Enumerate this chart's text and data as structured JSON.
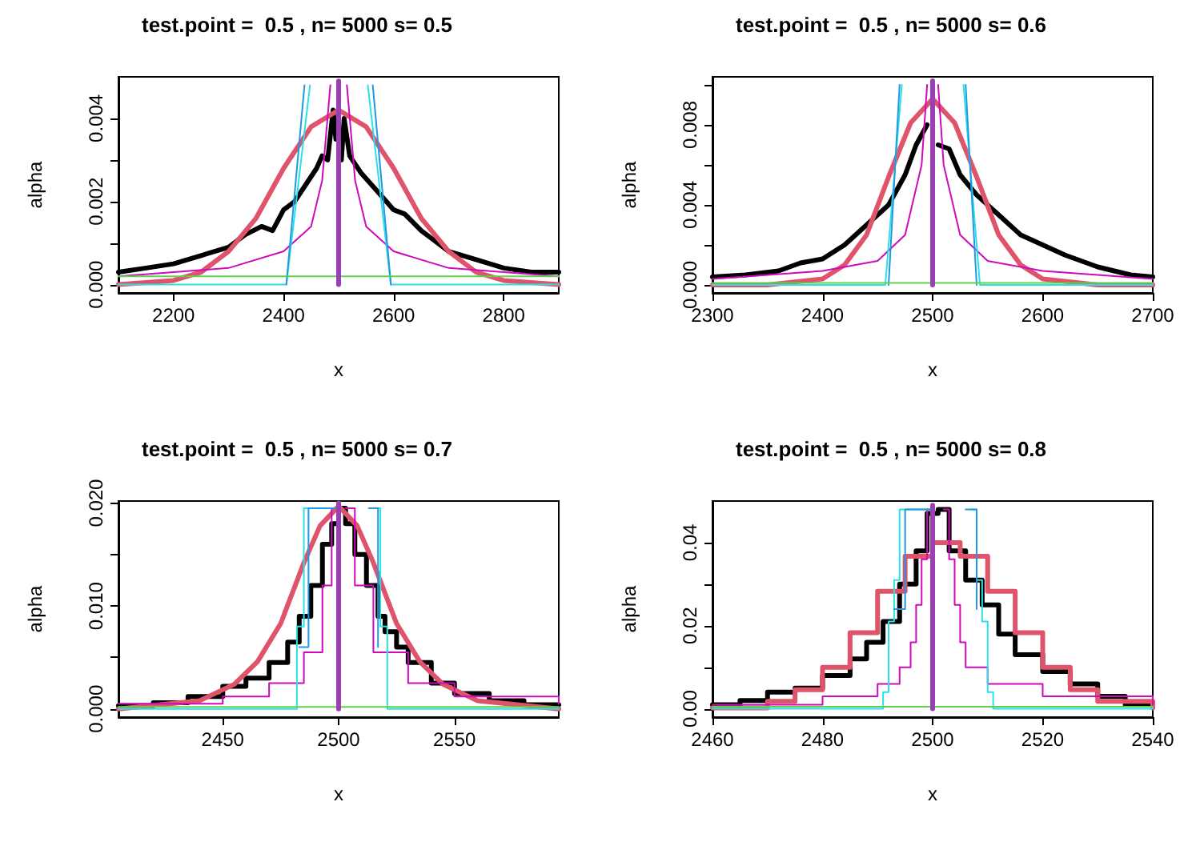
{
  "chart_data": [
    {
      "type": "line",
      "title": "test.point =  0.5 , n= 5000 s= 0.5",
      "xlabel": "x",
      "ylabel": "alpha",
      "xlim": [
        2100,
        2900
      ],
      "ylim": [
        -0.0002,
        0.005
      ],
      "xticks": [
        2200,
        2400,
        2600,
        2800
      ],
      "yticks": [
        {
          "value": 0,
          "label": "0.000"
        },
        {
          "value": 0.001,
          "label": null
        },
        {
          "value": 0.002,
          "label": "0.002"
        },
        {
          "value": 0.003,
          "label": null
        },
        {
          "value": 0.004,
          "label": "0.004"
        }
      ],
      "marker": "none",
      "series": [
        {
          "color": "#000000",
          "x": [
            2100,
            2150,
            2200,
            2250,
            2300,
            2330,
            2360,
            2380,
            2400,
            2420,
            2440,
            2460,
            2470,
            2480,
            2490,
            2495,
            2500,
            2505,
            2510,
            2520,
            2540,
            2560,
            2580,
            2600,
            2620,
            2650,
            2680,
            2700,
            2750,
            2800,
            2850,
            2900
          ],
          "values": [
            0.0003,
            0.0004,
            0.0005,
            0.0007,
            0.0009,
            0.0012,
            0.0014,
            0.0013,
            0.0018,
            0.002,
            0.0024,
            0.0028,
            0.0031,
            0.003,
            0.0042,
            0.0035,
            null,
            0.003,
            0.004,
            0.0031,
            0.0027,
            0.0024,
            0.0021,
            0.0018,
            0.0017,
            0.0013,
            0.001,
            0.0008,
            0.0006,
            0.0004,
            0.0003,
            0.0003
          ]
        },
        {
          "color": "#df536b",
          "x": [
            2100,
            2200,
            2250,
            2300,
            2350,
            2400,
            2450,
            2500,
            2550,
            2600,
            2650,
            2700,
            2750,
            2800,
            2900
          ],
          "values": [
            0,
            0.0001,
            0.0003,
            0.0008,
            0.0016,
            0.0028,
            0.0038,
            0.0042,
            0.0038,
            0.0028,
            0.0016,
            0.0008,
            0.0003,
            0.0001,
            0
          ]
        },
        {
          "color": "#cd0bbc",
          "x": [
            2100,
            2200,
            2300,
            2400,
            2450,
            2470,
            2485,
            2500,
            2515,
            2530,
            2550,
            2600,
            2700,
            2800,
            2900
          ],
          "values": [
            0.0002,
            0.0003,
            0.0004,
            0.0008,
            0.0014,
            0.0025,
            0.0048,
            null,
            0.0048,
            0.0025,
            0.0014,
            0.0008,
            0.0004,
            0.0003,
            0.0002
          ]
        },
        {
          "color": "#28e2e5",
          "x": [
            2100,
            2405,
            2448,
            2500,
            2553,
            2595,
            2900
          ],
          "values": [
            0,
            0,
            0.0048,
            null,
            0.0048,
            0,
            0
          ]
        },
        {
          "color": "#2297e6",
          "x": [
            2405,
            2438,
            2500,
            2562,
            2595
          ],
          "values": [
            0,
            0.0048,
            null,
            0.0048,
            0
          ]
        },
        {
          "color": "#61d04f",
          "x": [
            2100,
            2900
          ],
          "values": [
            0.0002,
            0.0002
          ]
        },
        {
          "color": "#9b3fb5",
          "x": [
            2500,
            2500
          ],
          "values": [
            0,
            0.0049
          ]
        }
      ]
    },
    {
      "type": "line",
      "title": "test.point =  0.5 , n= 5000 s= 0.6",
      "xlabel": "x",
      "ylabel": "alpha",
      "xlim": [
        2300,
        2700
      ],
      "ylim": [
        -0.0004,
        0.0104
      ],
      "xticks": [
        2300,
        2400,
        2500,
        2600,
        2700
      ],
      "yticks": [
        {
          "value": 0,
          "label": "0.000"
        },
        {
          "value": 0.002,
          "label": null
        },
        {
          "value": 0.004,
          "label": "0.004"
        },
        {
          "value": 0.006,
          "label": null
        },
        {
          "value": 0.008,
          "label": "0.008"
        },
        {
          "value": 0.01,
          "label": null
        }
      ],
      "marker": "none",
      "series": [
        {
          "color": "#000000",
          "x": [
            2300,
            2330,
            2360,
            2380,
            2400,
            2420,
            2440,
            2460,
            2475,
            2485,
            2495,
            2500,
            2505,
            2515,
            2525,
            2540,
            2560,
            2580,
            2600,
            2620,
            2650,
            2680,
            2700
          ],
          "values": [
            0.0004,
            0.0005,
            0.0007,
            0.0011,
            0.0013,
            0.002,
            0.003,
            0.004,
            0.0055,
            0.007,
            0.008,
            null,
            0.007,
            0.0068,
            0.0055,
            0.0045,
            0.0035,
            0.0025,
            0.002,
            0.0015,
            0.0009,
            0.0005,
            0.0004
          ]
        },
        {
          "color": "#df536b",
          "x": [
            2300,
            2350,
            2400,
            2420,
            2440,
            2460,
            2480,
            2500,
            2520,
            2540,
            2560,
            2580,
            2600,
            2650,
            2700
          ],
          "values": [
            0,
            0,
            0.0003,
            0.001,
            0.0025,
            0.0054,
            0.0081,
            0.0093,
            0.0081,
            0.0054,
            0.0025,
            0.001,
            0.0003,
            0,
            0
          ]
        },
        {
          "color": "#cd0bbc",
          "x": [
            2300,
            2400,
            2450,
            2475,
            2490,
            2495,
            2500,
            2505,
            2510,
            2525,
            2550,
            2600,
            2700
          ],
          "values": [
            0.0003,
            0.0007,
            0.0012,
            0.0025,
            0.006,
            0.01,
            null,
            0.01,
            0.006,
            0.0025,
            0.0012,
            0.0007,
            0.0003
          ]
        },
        {
          "color": "#28e2e5",
          "x": [
            2300,
            2457,
            2472,
            2500,
            2528,
            2543,
            2700
          ],
          "values": [
            0,
            0,
            0.01,
            null,
            0.01,
            0,
            0
          ]
        },
        {
          "color": "#2297e6",
          "x": [
            2460,
            2470,
            2500,
            2530,
            2540
          ],
          "values": [
            0,
            0.01,
            null,
            0.01,
            0
          ]
        },
        {
          "color": "#61d04f",
          "x": [
            2300,
            2700
          ],
          "values": [
            0.0001,
            0.0001
          ]
        },
        {
          "color": "#9b3fb5",
          "x": [
            2500,
            2500
          ],
          "values": [
            0,
            0.0102
          ]
        }
      ]
    },
    {
      "type": "line",
      "title": "test.point =  0.5 , n= 5000 s= 0.7",
      "xlabel": "x",
      "ylabel": "alpha",
      "xlim": [
        2405,
        2595
      ],
      "ylim": [
        -0.0008,
        0.0202
      ],
      "xticks": [
        2450,
        2500,
        2550
      ],
      "yticks": [
        {
          "value": 0,
          "label": "0.000"
        },
        {
          "value": 0.005,
          "label": null
        },
        {
          "value": 0.01,
          "label": "0.010"
        },
        {
          "value": 0.015,
          "label": null
        },
        {
          "value": 0.02,
          "label": "0.020"
        }
      ],
      "marker": "none",
      "series": [
        {
          "type": "step",
          "color": "#000000",
          "x": [
            2405,
            2420,
            2435,
            2450,
            2460,
            2470,
            2478,
            2483,
            2488,
            2493,
            2497,
            2500,
            2503,
            2507,
            2512,
            2517,
            2520,
            2525,
            2530,
            2540,
            2550,
            2565,
            2580,
            2595
          ],
          "values": [
            0.0003,
            0.0006,
            0.0012,
            0.0022,
            0.003,
            0.0045,
            0.0065,
            0.009,
            0.012,
            0.016,
            0.018,
            0.0195,
            0.018,
            0.015,
            0.012,
            0.009,
            0.0075,
            0.006,
            0.0045,
            0.0025,
            0.0015,
            0.0008,
            0.0004,
            0.0003
          ]
        },
        {
          "color": "#df536b",
          "x": [
            2405,
            2440,
            2455,
            2465,
            2475,
            2485,
            2492,
            2500,
            2508,
            2515,
            2525,
            2535,
            2545,
            2560,
            2595
          ],
          "values": [
            0,
            0.0008,
            0.0024,
            0.0046,
            0.0083,
            0.0142,
            0.0178,
            0.0197,
            0.0178,
            0.0142,
            0.0083,
            0.0046,
            0.0024,
            0.0008,
            0
          ]
        },
        {
          "type": "step",
          "color": "#cd0bbc",
          "x": [
            2405,
            2450,
            2470,
            2485,
            2493,
            2497,
            2500,
            2503,
            2507,
            2515,
            2530,
            2550,
            2595
          ],
          "values": [
            0.0005,
            0.0012,
            0.0025,
            0.0055,
            0.012,
            0.0195,
            null,
            0.0195,
            0.012,
            0.0055,
            0.0025,
            0.0012,
            0.0005
          ]
        },
        {
          "type": "step",
          "color": "#28e2e5",
          "x": [
            2405,
            2480,
            2482,
            2485,
            2500,
            2515,
            2518,
            2521,
            2595
          ],
          "values": [
            0,
            0,
            0.008,
            0.0195,
            null,
            0.0195,
            0.008,
            0,
            0
          ]
        },
        {
          "type": "step",
          "color": "#2297e6",
          "x": [
            2483,
            2487,
            2500,
            2513,
            2517
          ],
          "values": [
            0.006,
            0.0195,
            null,
            0.0195,
            0.006
          ]
        },
        {
          "color": "#61d04f",
          "x": [
            2405,
            2595
          ],
          "values": [
            0.0002,
            0.0002
          ]
        },
        {
          "color": "#9b3fb5",
          "x": [
            2500,
            2500
          ],
          "values": [
            0,
            0.02
          ]
        }
      ]
    },
    {
      "type": "line",
      "title": "test.point =  0.5 , n= 5000 s= 0.8",
      "xlabel": "x",
      "ylabel": "alpha",
      "xlim": [
        2460,
        2540
      ],
      "ylim": [
        -0.002,
        0.05
      ],
      "xticks": [
        2460,
        2480,
        2500,
        2520,
        2540
      ],
      "yticks": [
        {
          "value": 0,
          "label": "0.00"
        },
        {
          "value": 0.01,
          "label": null
        },
        {
          "value": 0.02,
          "label": "0.02"
        },
        {
          "value": 0.03,
          "label": null
        },
        {
          "value": 0.04,
          "label": "0.04"
        }
      ],
      "marker": "none",
      "series": [
        {
          "type": "step",
          "color": "#000000",
          "x": [
            2460,
            2465,
            2470,
            2475,
            2480,
            2485,
            2488,
            2491,
            2494,
            2497,
            2499,
            2501,
            2503,
            2506,
            2509,
            2512,
            2515,
            2520,
            2525,
            2530,
            2535,
            2540
          ],
          "values": [
            0.001,
            0.002,
            0.004,
            0.005,
            0.008,
            0.012,
            0.016,
            0.021,
            0.03,
            0.038,
            0.047,
            0.048,
            0.038,
            0.031,
            0.025,
            0.018,
            0.013,
            0.009,
            0.006,
            0.003,
            0.001,
            0.001
          ]
        },
        {
          "type": "step",
          "color": "#df536b",
          "x": [
            2460,
            2470,
            2475,
            2480,
            2485,
            2490,
            2495,
            2500,
            2505,
            2510,
            2515,
            2520,
            2525,
            2530,
            2540
          ],
          "values": [
            0.0002,
            0.0018,
            0.0046,
            0.01,
            0.0183,
            0.0283,
            0.0367,
            0.04,
            0.0367,
            0.0283,
            0.0183,
            0.01,
            0.0046,
            0.0018,
            0.0002
          ]
        },
        {
          "type": "step",
          "color": "#cd0bbc",
          "x": [
            2460,
            2480,
            2490,
            2494,
            2496,
            2497,
            2498,
            2499,
            2500,
            2502,
            2503,
            2504,
            2505,
            2506,
            2510,
            2520,
            2540
          ],
          "values": [
            0.001,
            0.003,
            0.006,
            0.01,
            0.016,
            0.025,
            0.036,
            0.048,
            null,
            0.048,
            0.036,
            0.025,
            0.016,
            0.01,
            0.006,
            0.003,
            0.001
          ]
        },
        {
          "type": "step",
          "color": "#28e2e5",
          "x": [
            2460,
            2490,
            2491,
            2492,
            2493,
            2494,
            2500,
            2507,
            2508,
            2509,
            2510,
            2511,
            2540
          ],
          "values": [
            0,
            0,
            0.004,
            0.021,
            0.031,
            0.048,
            null,
            0.048,
            0.031,
            0.021,
            0.004,
            0,
            0
          ]
        },
        {
          "type": "step",
          "color": "#2297e6",
          "x": [
            2493,
            2495,
            2500,
            2506,
            2508
          ],
          "values": [
            0.024,
            0.048,
            null,
            0.048,
            0.024
          ]
        },
        {
          "color": "#61d04f",
          "x": [
            2460,
            2540
          ],
          "values": [
            0.0005,
            0.0005
          ]
        },
        {
          "color": "#9b3fb5",
          "x": [
            2500,
            2500
          ],
          "values": [
            0,
            0.049
          ]
        }
      ]
    }
  ]
}
